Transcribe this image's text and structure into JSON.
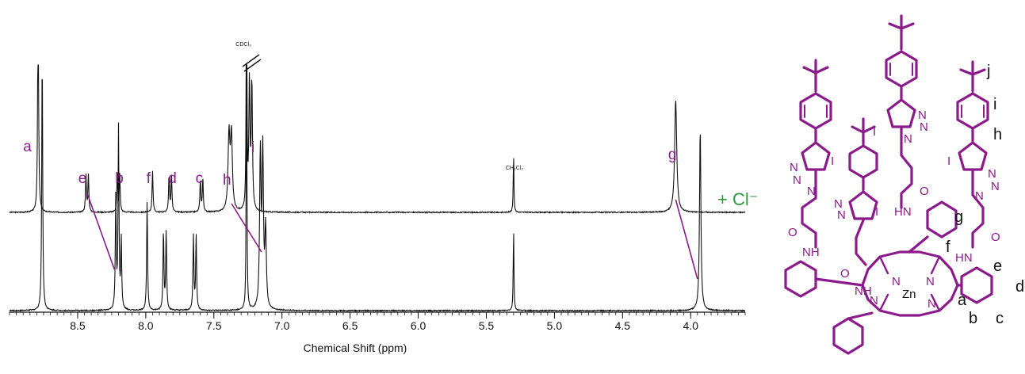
{
  "chart_data": {
    "type": "line",
    "xlabel": "Chemical Shift (ppm)",
    "xlim": [
      9.0,
      3.6
    ],
    "x_ticks": [
      8.5,
      8.0,
      7.5,
      7.0,
      6.5,
      6.0,
      5.5,
      5.0,
      4.5,
      4.0
    ],
    "x_tick_labels": [
      "8.5",
      "8.0",
      "7.5",
      "7.0",
      "6.5",
      "6.0",
      "5.5",
      "5.0",
      "4.5",
      "4.0"
    ],
    "minor_tick_step": 0.05,
    "grid": false,
    "series": [
      {
        "name": "+ Cl⁻",
        "baseline": 0,
        "peaks": [
          {
            "label": "a",
            "ppm": 8.79,
            "height": 0.95,
            "width": 0.004,
            "mult": 1,
            "J": 0
          },
          {
            "label": "e",
            "ppm": 8.43,
            "height": 0.16,
            "width": 0.004,
            "mult": 2,
            "J": 0.018
          },
          {
            "label": "b",
            "ppm": 8.2,
            "height": 0.16,
            "width": 0.004,
            "mult": 2,
            "J": 0.018
          },
          {
            "label": "f",
            "ppm": 7.95,
            "height": 0.17,
            "width": 0.004,
            "mult": 1,
            "J": 0
          },
          {
            "label": "d",
            "ppm": 7.82,
            "height": 0.16,
            "width": 0.004,
            "mult": 2,
            "J": 0.018
          },
          {
            "label": "c",
            "ppm": 7.59,
            "height": 0.14,
            "width": 0.004,
            "mult": 2,
            "J": 0.018
          },
          {
            "label": "h",
            "ppm": 7.38,
            "height": 0.32,
            "width": 0.008,
            "mult": 2,
            "J": 0.018
          },
          {
            "label": "CDCl₃",
            "ppm": 7.26,
            "height": 1.15,
            "width": 0.003,
            "mult": 1,
            "J": 0
          },
          {
            "label": "i",
            "ppm": 7.23,
            "height": 0.55,
            "width": 0.005,
            "mult": 2,
            "J": 0.018
          },
          {
            "label": "CH₂Cl₂",
            "ppm": 5.3,
            "height": 0.24,
            "width": 0.003,
            "mult": 1,
            "J": 0
          },
          {
            "label": "g",
            "ppm": 4.11,
            "height": 0.46,
            "width": 0.009,
            "mult": 1,
            "J": 0
          }
        ]
      },
      {
        "name": "",
        "baseline": 0,
        "peaks": [
          {
            "label": "a",
            "ppm": 8.76,
            "height": 1.0,
            "width": 0.004,
            "mult": 1,
            "J": 0
          },
          {
            "label": "e",
            "ppm": 8.21,
            "height": 0.45,
            "width": 0.004,
            "mult": 2,
            "J": 0.02
          },
          {
            "label": "b",
            "ppm": 8.19,
            "height": 0.28,
            "width": 0.004,
            "mult": 2,
            "J": 0.02
          },
          {
            "label": "f",
            "ppm": 7.99,
            "height": 0.42,
            "width": 0.004,
            "mult": 1,
            "J": 0
          },
          {
            "label": "d",
            "ppm": 7.86,
            "height": 0.32,
            "width": 0.004,
            "mult": 2,
            "J": 0.02
          },
          {
            "label": "c",
            "ppm": 7.64,
            "height": 0.3,
            "width": 0.004,
            "mult": 2,
            "J": 0.02
          },
          {
            "label": "CDCl₃",
            "ppm": 7.26,
            "height": 1.05,
            "width": 0.003,
            "mult": 1,
            "J": 0
          },
          {
            "label": "h",
            "ppm": 7.15,
            "height": 0.62,
            "width": 0.006,
            "mult": 2,
            "J": 0.018
          },
          {
            "label": "i",
            "ppm": 7.12,
            "height": 0.3,
            "width": 0.006,
            "mult": 1,
            "J": 0
          },
          {
            "label": "CH₂Cl₂",
            "ppm": 5.3,
            "height": 0.32,
            "width": 0.003,
            "mult": 1,
            "J": 0
          },
          {
            "label": "g",
            "ppm": 3.93,
            "height": 0.7,
            "width": 0.006,
            "mult": 1,
            "J": 0
          }
        ]
      }
    ],
    "peak_labels": [
      {
        "text": "a",
        "ppm": 8.83
      },
      {
        "text": "e",
        "ppm": 8.46
      },
      {
        "text": "b",
        "ppm": 8.19
      },
      {
        "text": "f",
        "ppm": 7.96
      },
      {
        "text": "d",
        "ppm": 7.8
      },
      {
        "text": "c",
        "ppm": 7.6
      },
      {
        "text": "h",
        "ppm": 7.4
      },
      {
        "text": "i",
        "ppm": 7.19
      },
      {
        "text": "g",
        "ppm": 4.13
      }
    ],
    "solvent_labels": [
      {
        "text": "CDCl₃",
        "ppm": 7.27
      },
      {
        "text": "CH₂Cl₂",
        "ppm": 5.3
      }
    ],
    "shift_lines": [
      {
        "from_ppm": 8.43,
        "to_ppm": 8.23,
        "label": "e"
      },
      {
        "from_ppm": 7.37,
        "to_ppm": 7.15,
        "label": "h"
      },
      {
        "from_ppm": 4.11,
        "to_ppm": 3.95,
        "label": "g"
      }
    ],
    "anion_label": "+ Cl⁻"
  },
  "structure": {
    "purple_labels": [
      "I",
      "I",
      "I",
      "N",
      "N",
      "N",
      "O",
      "O",
      "O",
      "NH",
      "HN",
      "HN",
      "NH",
      "N",
      "N",
      "N",
      "N",
      "N",
      "N",
      "N",
      "N",
      "N",
      "N"
    ],
    "metal": "Zn",
    "proton_labels": [
      "j",
      "i",
      "h",
      "g",
      "f",
      "e",
      "d",
      "c",
      "b",
      "a"
    ],
    "color": "#8b1a8b"
  }
}
